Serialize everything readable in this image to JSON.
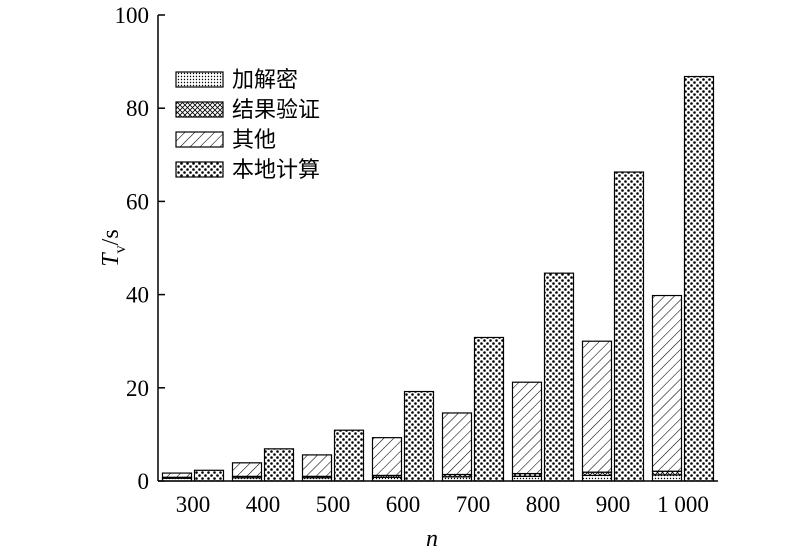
{
  "chart_data": {
    "type": "bar",
    "layout": "grouped-and-stacked",
    "ylabel": {
      "main": "T",
      "sub": "v",
      "unit": "/s"
    },
    "xlabel": "n",
    "ylim": [
      0,
      100
    ],
    "yticks": [
      0,
      20,
      40,
      60,
      80,
      100
    ],
    "grid": false,
    "legend_position": "top-left",
    "categories": [
      "300",
      "400",
      "500",
      "600",
      "700",
      "800",
      "900",
      "1 000"
    ],
    "legend": [
      {
        "key": "encrypt",
        "label": "加解密",
        "pattern": "fine-dots"
      },
      {
        "key": "verify",
        "label": "结果验证",
        "pattern": "crosshatch"
      },
      {
        "key": "other",
        "label": "其他",
        "pattern": "diagonal"
      },
      {
        "key": "local",
        "label": "本地计算",
        "pattern": "dots"
      }
    ],
    "stacked_bar": {
      "series": [
        {
          "key": "encrypt",
          "values": [
            0.6,
            0.7,
            0.7,
            0.8,
            0.9,
            1.0,
            1.2,
            1.3
          ]
        },
        {
          "key": "verify",
          "values": [
            0.2,
            0.3,
            0.3,
            0.4,
            0.5,
            0.6,
            0.7,
            0.8
          ]
        },
        {
          "key": "other",
          "values": [
            0.9,
            2.9,
            4.6,
            8.1,
            13.2,
            19.6,
            28.1,
            37.7
          ]
        }
      ]
    },
    "local_bar": {
      "key": "local",
      "values": [
        2.3,
        6.9,
        10.9,
        19.2,
        30.8,
        44.6,
        66.3,
        86.8
      ]
    }
  }
}
